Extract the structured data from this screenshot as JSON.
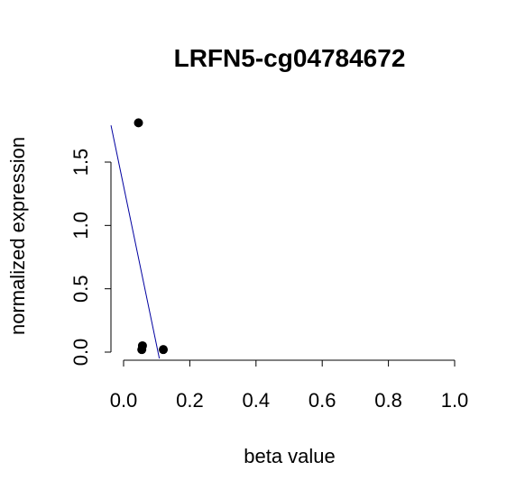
{
  "chart_data": {
    "type": "scatter",
    "title": "LRFN5-cg04784672",
    "xlabel": "beta value",
    "ylabel": "normalized expression",
    "xlim": [
      0.0,
      1.0
    ],
    "ylim": [
      0.0,
      1.8
    ],
    "x_ticks": [
      "0.0",
      "0.2",
      "0.4",
      "0.6",
      "0.8",
      "1.0"
    ],
    "y_ticks": [
      "0.0",
      "0.5",
      "1.0",
      "1.5"
    ],
    "points": [
      {
        "x": 0.045,
        "y": 1.81
      },
      {
        "x": 0.057,
        "y": 0.05
      },
      {
        "x": 0.055,
        "y": 0.02
      },
      {
        "x": 0.12,
        "y": 0.02
      }
    ],
    "fit_line": {
      "color": "#0000a0",
      "x": [
        -0.038,
        0.108
      ],
      "y": [
        1.79,
        -0.05
      ]
    },
    "point_color": "#000000",
    "grid": false,
    "legend": "none"
  }
}
